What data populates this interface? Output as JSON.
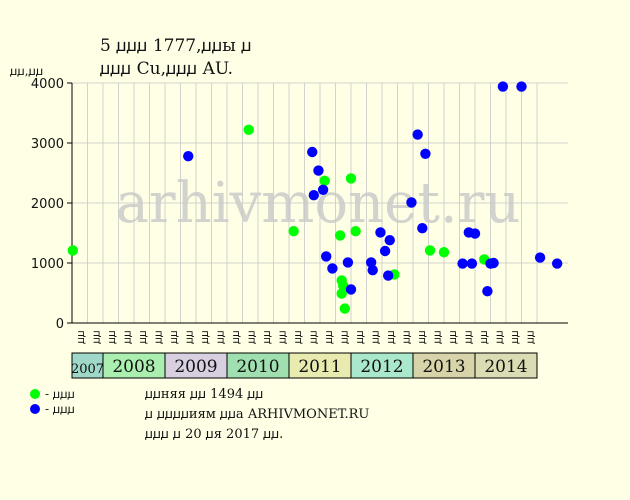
{
  "title_line1": "5 ꙡꙡꙡ 1777,ꙡꙡы ꙡ",
  "title_line2": "ꙡꙡꙡ Cu,ꙡꙡꙡ AU.",
  "y_unit_label": "ꙡꙡ,ꙡꙡ",
  "watermark": "arhivmonet.ru",
  "legend": [
    {
      "label": "- ꙡꙡꙡ",
      "color": "#00ff00"
    },
    {
      "label": "- ꙡꙡꙡ",
      "color": "#0000ff"
    }
  ],
  "footnotes": [
    "ꙡꙡняя ꙡꙡ 1494 ꙡꙡ",
    "ꙡ ꙡꙡꙡꙡиям ꙡꙡа ARHIVMONET.RU",
    "ꙡꙡꙡ ꙡ 20 ꙡя 2017 ꙡꙡ."
  ],
  "colors": {
    "background": "#ffffe6",
    "green_series": "#00ff00",
    "blue_series": "#0000ff"
  },
  "chart_data": {
    "type": "scatter",
    "ylim": [
      0,
      4000
    ],
    "yticks": [
      0,
      1000,
      2000,
      3000,
      4000
    ],
    "quarters": [
      "ꙡꙡ",
      "ꙡꙡ",
      "ꙡꙡ",
      "ꙡꙡ",
      "ꙡꙡ",
      "ꙡꙡ",
      "ꙡꙡ",
      "ꙡꙡ",
      "ꙡꙡ",
      "ꙡꙡ",
      "ꙡꙡ",
      "ꙡꙡ",
      "ꙡꙡ",
      "ꙡꙡ",
      "ꙡꙡ",
      "ꙡꙡ",
      "ꙡꙡ",
      "ꙡꙡ",
      "ꙡꙡ",
      "ꙡꙡ",
      "ꙡꙡ",
      "ꙡꙡ",
      "ꙡꙡ",
      "ꙡꙡ",
      "ꙡꙡ",
      "ꙡꙡ",
      "ꙡꙡ",
      "ꙡꙡ",
      "ꙡꙡ",
      "ꙡꙡ"
    ],
    "years": [
      {
        "label": "2007",
        "quarters": 2,
        "color": "#9fd8c8"
      },
      {
        "label": "2008",
        "quarters": 4,
        "color": "#aaeeb0"
      },
      {
        "label": "2009",
        "quarters": 4,
        "color": "#d8d0e0"
      },
      {
        "label": "2010",
        "quarters": 4,
        "color": "#a0e0b0"
      },
      {
        "label": "2011",
        "quarters": 4,
        "color": "#e8eab0"
      },
      {
        "label": "2012",
        "quarters": 4,
        "color": "#aae8cc"
      },
      {
        "label": "2013",
        "quarters": 4,
        "color": "#d8d4aa"
      },
      {
        "label": "2014",
        "quarters": 4,
        "color": "#dcdcb4"
      }
    ],
    "series": [
      {
        "color": "#00ff00",
        "points": [
          {
            "x": 0.05,
            "y": 1210
          },
          {
            "x": 11.4,
            "y": 3220
          },
          {
            "x": 14.3,
            "y": 1530
          },
          {
            "x": 16.3,
            "y": 2370
          },
          {
            "x": 17.3,
            "y": 1460
          },
          {
            "x": 17.4,
            "y": 710
          },
          {
            "x": 17.5,
            "y": 620
          },
          {
            "x": 17.4,
            "y": 490
          },
          {
            "x": 17.6,
            "y": 240
          },
          {
            "x": 18.0,
            "y": 2410
          },
          {
            "x": 18.3,
            "y": 1530
          },
          {
            "x": 20.8,
            "y": 810
          },
          {
            "x": 23.1,
            "y": 1210
          },
          {
            "x": 24.0,
            "y": 1180
          },
          {
            "x": 26.6,
            "y": 1060
          }
        ]
      },
      {
        "color": "#0000ff",
        "points": [
          {
            "x": 7.5,
            "y": 2780
          },
          {
            "x": 15.5,
            "y": 2850
          },
          {
            "x": 15.6,
            "y": 2130
          },
          {
            "x": 15.9,
            "y": 2540
          },
          {
            "x": 16.2,
            "y": 2220
          },
          {
            "x": 16.4,
            "y": 1110
          },
          {
            "x": 16.8,
            "y": 910
          },
          {
            "x": 17.8,
            "y": 1010
          },
          {
            "x": 18.0,
            "y": 560
          },
          {
            "x": 19.3,
            "y": 1010
          },
          {
            "x": 19.4,
            "y": 880
          },
          {
            "x": 19.9,
            "y": 1510
          },
          {
            "x": 20.2,
            "y": 1200
          },
          {
            "x": 20.4,
            "y": 790
          },
          {
            "x": 20.5,
            "y": 1380
          },
          {
            "x": 21.9,
            "y": 2010
          },
          {
            "x": 22.3,
            "y": 3140
          },
          {
            "x": 22.6,
            "y": 1580
          },
          {
            "x": 22.8,
            "y": 2820
          },
          {
            "x": 25.2,
            "y": 990
          },
          {
            "x": 25.6,
            "y": 1510
          },
          {
            "x": 25.8,
            "y": 990
          },
          {
            "x": 26.0,
            "y": 1490
          },
          {
            "x": 26.8,
            "y": 530
          },
          {
            "x": 27.0,
            "y": 990
          },
          {
            "x": 27.2,
            "y": 1000
          },
          {
            "x": 27.8,
            "y": 3940
          },
          {
            "x": 29.0,
            "y": 3940
          },
          {
            "x": 30.2,
            "y": 1090
          },
          {
            "x": 31.3,
            "y": 990
          }
        ]
      }
    ]
  }
}
